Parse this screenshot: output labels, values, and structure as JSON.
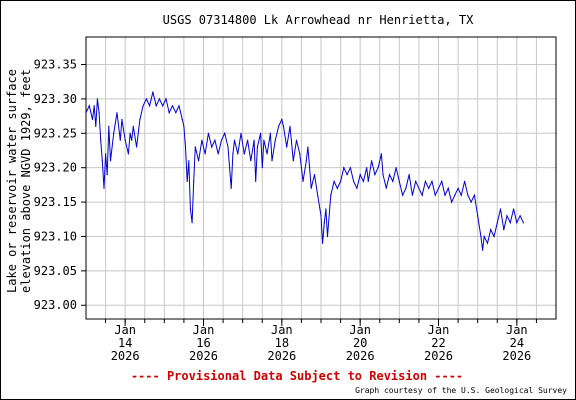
{
  "chart_data": {
    "type": "line",
    "title": "USGS 07314800 Lk Arrowhead nr Henrietta, TX",
    "ylabel_line1": "Lake or reservoir water surface",
    "ylabel_line2": "elevation above NGVD 1929, feet",
    "xlabel": "",
    "ylim": [
      922.98,
      923.39
    ],
    "xlim": [
      "2026-01-13",
      "2026-01-25"
    ],
    "grid": true,
    "y_ticks": [
      "923.00",
      "923.05",
      "923.10",
      "923.15",
      "923.20",
      "923.25",
      "923.30",
      "923.35"
    ],
    "x_ticks": [
      {
        "date": "2026-01-14",
        "month": "Jan",
        "day": "14",
        "year": "2026"
      },
      {
        "date": "2026-01-16",
        "month": "Jan",
        "day": "16",
        "year": "2026"
      },
      {
        "date": "2026-01-18",
        "month": "Jan",
        "day": "18",
        "year": "2026"
      },
      {
        "date": "2026-01-20",
        "month": "Jan",
        "day": "20",
        "year": "2026"
      },
      {
        "date": "2026-01-22",
        "month": "Jan",
        "day": "22",
        "year": "2026"
      },
      {
        "date": "2026-01-24",
        "month": "Jan",
        "day": "24",
        "year": "2026"
      }
    ],
    "series": [
      {
        "color": "#0000cc",
        "points": [
          [
            "2026-01-13 00:00",
            923.28
          ],
          [
            "2026-01-13 02:00",
            923.29
          ],
          [
            "2026-01-13 04:00",
            923.27
          ],
          [
            "2026-01-13 05:00",
            923.29
          ],
          [
            "2026-01-13 06:00",
            923.26
          ],
          [
            "2026-01-13 07:00",
            923.3
          ],
          [
            "2026-01-13 08:00",
            923.28
          ],
          [
            "2026-01-13 09:00",
            923.24
          ],
          [
            "2026-01-13 10:00",
            923.21
          ],
          [
            "2026-01-13 11:00",
            923.17
          ],
          [
            "2026-01-13 12:00",
            923.22
          ],
          [
            "2026-01-13 13:00",
            923.19
          ],
          [
            "2026-01-13 14:00",
            923.26
          ],
          [
            "2026-01-13 15:00",
            923.21
          ],
          [
            "2026-01-13 17:00",
            923.25
          ],
          [
            "2026-01-13 19:00",
            923.28
          ],
          [
            "2026-01-13 21:00",
            923.24
          ],
          [
            "2026-01-13 22:00",
            923.27
          ],
          [
            "2026-01-14 00:00",
            923.24
          ],
          [
            "2026-01-14 02:00",
            923.22
          ],
          [
            "2026-01-14 03:00",
            923.25
          ],
          [
            "2026-01-14 04:00",
            923.24
          ],
          [
            "2026-01-14 05:00",
            923.26
          ],
          [
            "2026-01-14 07:00",
            923.23
          ],
          [
            "2026-01-14 09:00",
            923.27
          ],
          [
            "2026-01-14 11:00",
            923.29
          ],
          [
            "2026-01-14 13:00",
            923.3
          ],
          [
            "2026-01-14 15:00",
            923.29
          ],
          [
            "2026-01-14 17:00",
            923.31
          ],
          [
            "2026-01-14 19:00",
            923.29
          ],
          [
            "2026-01-14 21:00",
            923.3
          ],
          [
            "2026-01-14 23:00",
            923.29
          ],
          [
            "2026-01-15 01:00",
            923.3
          ],
          [
            "2026-01-15 03:00",
            923.28
          ],
          [
            "2026-01-15 05:00",
            923.29
          ],
          [
            "2026-01-15 07:00",
            923.28
          ],
          [
            "2026-01-15 09:00",
            923.29
          ],
          [
            "2026-01-15 11:00",
            923.27
          ],
          [
            "2026-01-15 12:00",
            923.26
          ],
          [
            "2026-01-15 13:00",
            923.23
          ],
          [
            "2026-01-15 14:00",
            923.18
          ],
          [
            "2026-01-15 15:00",
            923.21
          ],
          [
            "2026-01-15 16:00",
            923.14
          ],
          [
            "2026-01-15 17:00",
            923.12
          ],
          [
            "2026-01-15 18:00",
            923.18
          ],
          [
            "2026-01-15 19:00",
            923.23
          ],
          [
            "2026-01-15 21:00",
            923.21
          ],
          [
            "2026-01-15 23:00",
            923.24
          ],
          [
            "2026-01-16 01:00",
            923.22
          ],
          [
            "2026-01-16 03:00",
            923.25
          ],
          [
            "2026-01-16 05:00",
            923.23
          ],
          [
            "2026-01-16 07:00",
            923.24
          ],
          [
            "2026-01-16 09:00",
            923.22
          ],
          [
            "2026-01-16 11:00",
            923.24
          ],
          [
            "2026-01-16 13:00",
            923.25
          ],
          [
            "2026-01-16 15:00",
            923.23
          ],
          [
            "2026-01-16 16:00",
            923.2
          ],
          [
            "2026-01-16 17:00",
            923.17
          ],
          [
            "2026-01-16 18:00",
            923.22
          ],
          [
            "2026-01-16 19:00",
            923.24
          ],
          [
            "2026-01-16 21:00",
            923.22
          ],
          [
            "2026-01-16 23:00",
            923.25
          ],
          [
            "2026-01-17 01:00",
            923.22
          ],
          [
            "2026-01-17 03:00",
            923.24
          ],
          [
            "2026-01-17 05:00",
            923.21
          ],
          [
            "2026-01-17 07:00",
            923.24
          ],
          [
            "2026-01-17 08:00",
            923.18
          ],
          [
            "2026-01-17 09:00",
            923.23
          ],
          [
            "2026-01-17 11:00",
            923.25
          ],
          [
            "2026-01-17 12:00",
            923.2
          ],
          [
            "2026-01-17 13:00",
            923.24
          ],
          [
            "2026-01-17 15:00",
            923.22
          ],
          [
            "2026-01-17 17:00",
            923.25
          ],
          [
            "2026-01-17 18:00",
            923.21
          ],
          [
            "2026-01-17 20:00",
            923.24
          ],
          [
            "2026-01-17 22:00",
            923.26
          ],
          [
            "2026-01-18 00:00",
            923.27
          ],
          [
            "2026-01-18 01:00",
            923.26
          ],
          [
            "2026-01-18 03:00",
            923.23
          ],
          [
            "2026-01-18 05:00",
            923.26
          ],
          [
            "2026-01-18 07:00",
            923.21
          ],
          [
            "2026-01-18 09:00",
            923.24
          ],
          [
            "2026-01-18 11:00",
            923.22
          ],
          [
            "2026-01-18 13:00",
            923.18
          ],
          [
            "2026-01-18 15:00",
            923.21
          ],
          [
            "2026-01-18 16:00",
            923.23
          ],
          [
            "2026-01-18 17:00",
            923.2
          ],
          [
            "2026-01-18 18:00",
            923.17
          ],
          [
            "2026-01-18 20:00",
            923.19
          ],
          [
            "2026-01-18 22:00",
            923.16
          ],
          [
            "2026-01-19 00:00",
            923.13
          ],
          [
            "2026-01-19 01:00",
            923.09
          ],
          [
            "2026-01-19 02:00",
            923.12
          ],
          [
            "2026-01-19 03:00",
            923.14
          ],
          [
            "2026-01-19 04:00",
            923.1
          ],
          [
            "2026-01-19 06:00",
            923.16
          ],
          [
            "2026-01-19 08:00",
            923.18
          ],
          [
            "2026-01-19 10:00",
            923.17
          ],
          [
            "2026-01-19 12:00",
            923.18
          ],
          [
            "2026-01-19 14:00",
            923.2
          ],
          [
            "2026-01-19 16:00",
            923.19
          ],
          [
            "2026-01-19 18:00",
            923.2
          ],
          [
            "2026-01-19 20:00",
            923.18
          ],
          [
            "2026-01-19 22:00",
            923.17
          ],
          [
            "2026-01-20 00:00",
            923.19
          ],
          [
            "2026-01-20 02:00",
            923.18
          ],
          [
            "2026-01-20 04:00",
            923.2
          ],
          [
            "2026-01-20 05:00",
            923.18
          ],
          [
            "2026-01-20 07:00",
            923.21
          ],
          [
            "2026-01-20 09:00",
            923.19
          ],
          [
            "2026-01-20 11:00",
            923.2
          ],
          [
            "2026-01-20 13:00",
            923.22
          ],
          [
            "2026-01-20 14:00",
            923.19
          ],
          [
            "2026-01-20 16:00",
            923.17
          ],
          [
            "2026-01-20 18:00",
            923.19
          ],
          [
            "2026-01-20 20:00",
            923.18
          ],
          [
            "2026-01-20 22:00",
            923.2
          ],
          [
            "2026-01-21 00:00",
            923.18
          ],
          [
            "2026-01-21 02:00",
            923.16
          ],
          [
            "2026-01-21 04:00",
            923.17
          ],
          [
            "2026-01-21 06:00",
            923.19
          ],
          [
            "2026-01-21 08:00",
            923.16
          ],
          [
            "2026-01-21 10:00",
            923.18
          ],
          [
            "2026-01-21 12:00",
            923.17
          ],
          [
            "2026-01-21 14:00",
            923.16
          ],
          [
            "2026-01-21 16:00",
            923.18
          ],
          [
            "2026-01-21 18:00",
            923.17
          ],
          [
            "2026-01-21 20:00",
            923.18
          ],
          [
            "2026-01-21 22:00",
            923.16
          ],
          [
            "2026-01-22 00:00",
            923.17
          ],
          [
            "2026-01-22 02:00",
            923.18
          ],
          [
            "2026-01-22 04:00",
            923.16
          ],
          [
            "2026-01-22 06:00",
            923.17
          ],
          [
            "2026-01-22 08:00",
            923.15
          ],
          [
            "2026-01-22 10:00",
            923.16
          ],
          [
            "2026-01-22 12:00",
            923.17
          ],
          [
            "2026-01-22 14:00",
            923.16
          ],
          [
            "2026-01-22 16:00",
            923.18
          ],
          [
            "2026-01-22 18:00",
            923.16
          ],
          [
            "2026-01-22 20:00",
            923.15
          ],
          [
            "2026-01-22 22:00",
            923.16
          ],
          [
            "2026-01-23 00:00",
            923.13
          ],
          [
            "2026-01-23 02:00",
            923.1
          ],
          [
            "2026-01-23 03:00",
            923.08
          ],
          [
            "2026-01-23 04:00",
            923.1
          ],
          [
            "2026-01-23 06:00",
            923.09
          ],
          [
            "2026-01-23 08:00",
            923.11
          ],
          [
            "2026-01-23 10:00",
            923.1
          ],
          [
            "2026-01-23 12:00",
            923.12
          ],
          [
            "2026-01-23 14:00",
            923.14
          ],
          [
            "2026-01-23 16:00",
            923.11
          ],
          [
            "2026-01-23 18:00",
            923.13
          ],
          [
            "2026-01-23 20:00",
            923.12
          ],
          [
            "2026-01-23 22:00",
            923.14
          ],
          [
            "2026-01-24 00:00",
            923.12
          ],
          [
            "2026-01-24 02:00",
            923.13
          ],
          [
            "2026-01-24 04:00",
            923.12
          ]
        ]
      }
    ]
  },
  "footer": {
    "provisional": "---- Provisional Data Subject to Revision ----",
    "credit": "Graph courtesy of the U.S. Geological Survey"
  },
  "colors": {
    "series": "#0000cc",
    "provisional": "#cc0000",
    "grid": "#c8c8c8",
    "axis": "#000000"
  }
}
